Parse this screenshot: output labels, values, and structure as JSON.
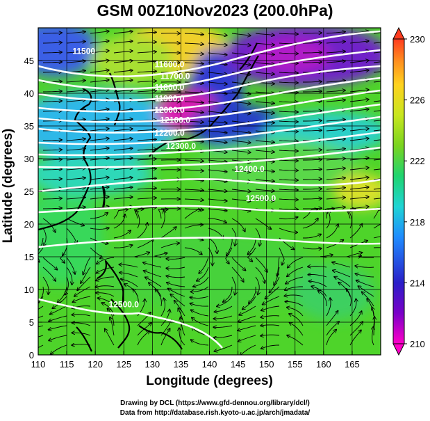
{
  "title": "GSM 00Z10Nov2023 (200.0hPa)",
  "x_axis": {
    "label": "Longitude (degrees)",
    "ticks": [
      "110",
      "115",
      "120",
      "125",
      "130",
      "135",
      "140",
      "145",
      "150",
      "155",
      "160",
      "165"
    ],
    "range": [
      110,
      170
    ]
  },
  "y_axis": {
    "label": "Latitude  (degrees)",
    "ticks": [
      "0",
      "5",
      "10",
      "15",
      "20",
      "25",
      "30",
      "35",
      "40",
      "45"
    ],
    "range": [
      0,
      50
    ]
  },
  "colorbar": {
    "ticks": [
      "210",
      "214",
      "218",
      "222",
      "226",
      "230"
    ],
    "range": [
      210,
      230
    ],
    "colors": [
      "#ff00c8",
      "#7a00c8",
      "#2a1fc8",
      "#1f8cff",
      "#1fd4d4",
      "#1fd470",
      "#7ad41f",
      "#c8e61f",
      "#ffd21f",
      "#ff8c1f",
      "#ff3c1f"
    ]
  },
  "contours": [
    {
      "label": "11500",
      "lat": 46,
      "lon": 118
    },
    {
      "label": "11600.0",
      "lat": 44,
      "lon": 133
    },
    {
      "label": "11700.0",
      "lat": 42.2,
      "lon": 134
    },
    {
      "label": "11800.0",
      "lat": 40.5,
      "lon": 133
    },
    {
      "label": "11900.0",
      "lat": 38.8,
      "lon": 133
    },
    {
      "label": "12000.0",
      "lat": 37,
      "lon": 133
    },
    {
      "label": "12100.0",
      "lat": 35.5,
      "lon": 134
    },
    {
      "label": "12200.0",
      "lat": 33.5,
      "lon": 133
    },
    {
      "label": "12300.0",
      "lat": 31.5,
      "lon": 135
    },
    {
      "label": "12400.0",
      "lat": 28,
      "lon": 147
    },
    {
      "label": "12500.0",
      "lat": 23.5,
      "lon": 149
    },
    {
      "label": "12500.0",
      "lat": 7.3,
      "lon": 125
    }
  ],
  "credits": {
    "line1": "Drawing by DCL (https://www.gfd-dennou.org/library/dcl/)",
    "line2": "Data from http://database.rish.kyoto-u.ac.jp/arch/jmadata/"
  }
}
